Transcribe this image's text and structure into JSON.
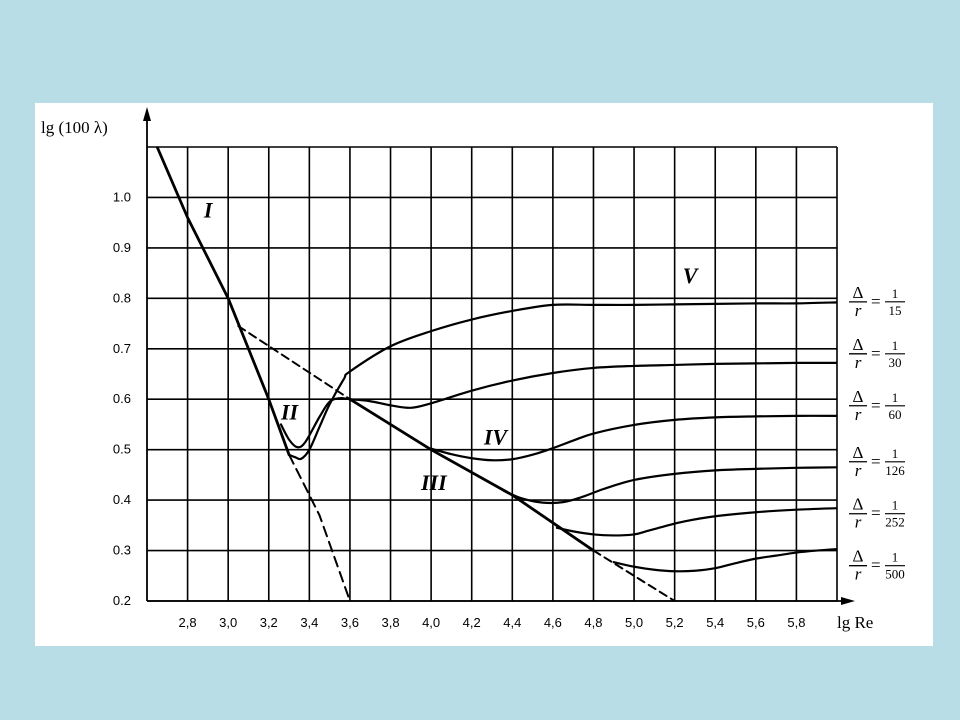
{
  "chart_data": {
    "type": "line",
    "title": "",
    "xlabel": "lg Re",
    "ylabel": "lg (100 λ)",
    "xlim": [
      2.6,
      6.0
    ],
    "ylim": [
      0.2,
      1.1
    ],
    "grid": true,
    "xticks": [
      "2,8",
      "3,0",
      "3,2",
      "3,4",
      "3,6",
      "3,8",
      "4,0",
      "4,2",
      "4,4",
      "4,6",
      "4,8",
      "5,0",
      "5,2",
      "5,4",
      "5,6",
      "5,8"
    ],
    "xtick_values": [
      2.8,
      3.0,
      3.2,
      3.4,
      3.6,
      3.8,
      4.0,
      4.2,
      4.4,
      4.6,
      4.8,
      5.0,
      5.2,
      5.4,
      5.6,
      5.8
    ],
    "yticks": [
      "0.2",
      "0.3",
      "0.4",
      "0.5",
      "0.6",
      "0.7",
      "0.8",
      "0.9",
      "1.0"
    ],
    "ytick_values": [
      0.2,
      0.3,
      0.4,
      0.5,
      0.6,
      0.7,
      0.8,
      0.9,
      1.0
    ],
    "region_labels": [
      {
        "text": "I",
        "x": 2.88,
        "y": 0.96
      },
      {
        "text": "II",
        "x": 3.26,
        "y": 0.56
      },
      {
        "text": "III",
        "x": 3.95,
        "y": 0.42
      },
      {
        "text": "IV",
        "x": 4.26,
        "y": 0.51
      },
      {
        "text": "V",
        "x": 5.24,
        "y": 0.83
      }
    ],
    "curve_labels": [
      {
        "symbol": "Δ",
        "over": "r",
        "eq": "=",
        "num": "1",
        "den": "15",
        "y": 0.795
      },
      {
        "symbol": "Δ",
        "over": "r",
        "eq": "=",
        "num": "1",
        "den": "30",
        "y": 0.692
      },
      {
        "symbol": "Δ",
        "over": "r",
        "eq": "=",
        "num": "1",
        "den": "60",
        "y": 0.589
      },
      {
        "symbol": "Δ",
        "over": "r",
        "eq": "=",
        "num": "1",
        "den": "126",
        "y": 0.478
      },
      {
        "symbol": "Δ",
        "over": "r",
        "eq": "=",
        "num": "1",
        "den": "252",
        "y": 0.375
      },
      {
        "symbol": "Δ",
        "over": "r",
        "eq": "=",
        "num": "1",
        "den": "500",
        "y": 0.272
      }
    ],
    "reference_lines": [
      {
        "name": "I",
        "style": "solid",
        "x": [
          2.65,
          2.8,
          3.0,
          3.2,
          3.3
        ],
        "y": [
          1.1,
          0.96,
          0.8,
          0.6,
          0.49
        ]
      },
      {
        "name": "III",
        "style": "solid",
        "x": [
          3.6,
          4.0,
          4.4,
          4.8
        ],
        "y": [
          0.6,
          0.5,
          0.41,
          0.3
        ]
      },
      {
        "name": "laminar-extension",
        "style": "dashed",
        "x": [
          3.3,
          3.45,
          3.6
        ],
        "y": [
          0.49,
          0.37,
          0.2
        ]
      },
      {
        "name": "smooth-pipe-extension",
        "style": "dashed",
        "x": [
          3.05,
          3.6
        ],
        "y": [
          0.745,
          0.6
        ]
      },
      {
        "name": "III-extension",
        "style": "dashed",
        "x": [
          4.8,
          5.2
        ],
        "y": [
          0.3,
          0.2
        ]
      }
    ],
    "series": [
      {
        "label_ratio": "1/15",
        "x": [
          3.3,
          3.33,
          3.36,
          3.4,
          3.45,
          3.5,
          3.57,
          3.6,
          3.8,
          4.0,
          4.2,
          4.4,
          4.6,
          4.8,
          5.0,
          5.2,
          5.4,
          5.6,
          5.8,
          6.0
        ],
        "y": [
          0.49,
          0.485,
          0.482,
          0.5,
          0.545,
          0.59,
          0.64,
          0.655,
          0.705,
          0.735,
          0.758,
          0.775,
          0.787,
          0.787,
          0.787,
          0.788,
          0.789,
          0.79,
          0.79,
          0.792
        ]
      },
      {
        "label_ratio": "1/30",
        "x": [
          3.26,
          3.3,
          3.34,
          3.38,
          3.45,
          3.5,
          3.55,
          3.6,
          3.7,
          3.8,
          3.9,
          4.0,
          4.2,
          4.4,
          4.6,
          4.8,
          5.0,
          5.2,
          5.4,
          5.6,
          5.8,
          6.0
        ],
        "y": [
          0.55,
          0.52,
          0.505,
          0.515,
          0.565,
          0.595,
          0.602,
          0.6,
          0.596,
          0.588,
          0.583,
          0.592,
          0.617,
          0.637,
          0.652,
          0.662,
          0.666,
          0.668,
          0.67,
          0.671,
          0.672,
          0.672
        ]
      },
      {
        "label_ratio": "1/60",
        "x": [
          4.0,
          4.1,
          4.2,
          4.3,
          4.4,
          4.5,
          4.6,
          4.7,
          4.8,
          5.0,
          5.2,
          5.4,
          5.6,
          5.8,
          6.0
        ],
        "y": [
          0.502,
          0.491,
          0.483,
          0.479,
          0.481,
          0.49,
          0.503,
          0.518,
          0.532,
          0.549,
          0.559,
          0.564,
          0.566,
          0.567,
          0.567
        ]
      },
      {
        "label_ratio": "1/126",
        "x": [
          4.36,
          4.45,
          4.55,
          4.65,
          4.75,
          4.85,
          5.0,
          5.2,
          5.4,
          5.6,
          5.8,
          6.0
        ],
        "y": [
          0.418,
          0.403,
          0.395,
          0.396,
          0.407,
          0.422,
          0.44,
          0.452,
          0.459,
          0.462,
          0.464,
          0.465
        ]
      },
      {
        "label_ratio": "1/252",
        "x": [
          4.62,
          4.7,
          4.8,
          4.9,
          5.0,
          5.05,
          5.15,
          5.25,
          5.4,
          5.6,
          5.8,
          6.0
        ],
        "y": [
          0.345,
          0.338,
          0.332,
          0.33,
          0.332,
          0.337,
          0.348,
          0.358,
          0.368,
          0.376,
          0.381,
          0.384
        ]
      },
      {
        "label_ratio": "1/500",
        "x": [
          4.9,
          5.0,
          5.1,
          5.2,
          5.3,
          5.4,
          5.5,
          5.6,
          5.7,
          5.8,
          5.9,
          6.0
        ],
        "y": [
          0.277,
          0.268,
          0.262,
          0.259,
          0.26,
          0.265,
          0.275,
          0.284,
          0.29,
          0.296,
          0.3,
          0.303
        ]
      }
    ]
  }
}
